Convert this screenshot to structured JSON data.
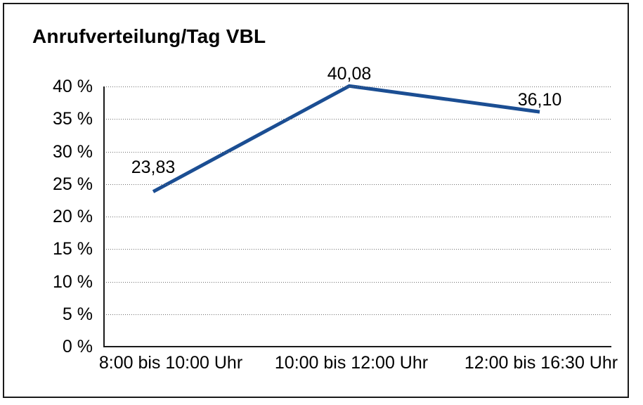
{
  "chart_data": {
    "type": "line",
    "title": "Anrufverteilung/Tag VBL",
    "categories": [
      "8:00 bis 10:00 Uhr",
      "10:00 bis 12:00 Uhr",
      "12:00 bis 16:30 Uhr"
    ],
    "series": [
      {
        "name": "Anrufverteilung/Tag VBL",
        "values": [
          23.83,
          40.08,
          36.1
        ]
      }
    ],
    "point_labels": [
      "23,83",
      "40,08",
      "36,10"
    ],
    "y_tick_labels": [
      "0 %",
      "5 %",
      "10 %",
      "15 %",
      "20 %",
      "25 %",
      "30 %",
      "35 %",
      "40 %"
    ],
    "xlabel": "",
    "ylabel": "",
    "ylim": [
      0,
      40
    ],
    "y_tick_step": 5,
    "grid": "horizontal-dotted",
    "legend": "none",
    "line_color": "#1b4e93",
    "axis_color": "#1a1a1a",
    "gridline_color": "#6e6e6e",
    "text_color": "#000000",
    "background_color": "#ffffff"
  }
}
